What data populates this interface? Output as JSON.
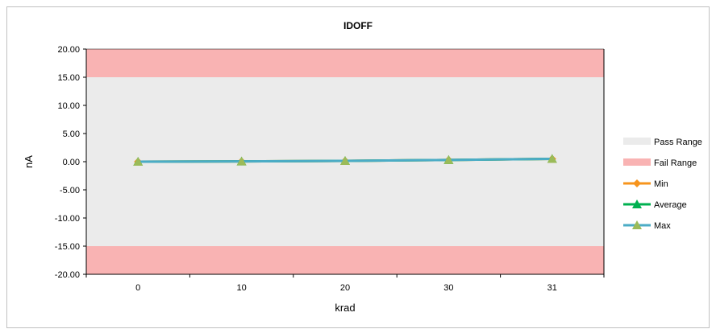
{
  "chart_data": {
    "type": "line",
    "title": "IDOFF",
    "xlabel": "krad",
    "ylabel": "nA",
    "categories": [
      "0",
      "10",
      "20",
      "30",
      "31"
    ],
    "ylim": [
      -20,
      20
    ],
    "y_tick_step": 5,
    "y_tick_decimals": 2,
    "pass_range": [
      -15,
      15
    ],
    "fail_ranges": [
      [
        15,
        20
      ],
      [
        -20,
        -15
      ]
    ],
    "series": [
      {
        "name": "Min",
        "values": [
          0.0,
          0.05,
          0.15,
          0.3,
          0.5
        ],
        "color": "#f7941d",
        "marker": "diamond"
      },
      {
        "name": "Average",
        "values": [
          0.0,
          0.05,
          0.15,
          0.3,
          0.5
        ],
        "color": "#00b050",
        "marker": "triangle"
      },
      {
        "name": "Max",
        "values": [
          0.0,
          0.05,
          0.15,
          0.3,
          0.5
        ],
        "color": "#4bacc6",
        "marker": "triangle",
        "marker_color": "#9bbb59"
      }
    ],
    "legend": {
      "position": "right",
      "items": [
        {
          "label": "Pass Range",
          "kind": "band",
          "color": "#ebebeb"
        },
        {
          "label": "Fail Range",
          "kind": "band",
          "color": "#f9b3b3"
        },
        {
          "label": "Min",
          "kind": "line",
          "color": "#f7941d",
          "marker": "diamond"
        },
        {
          "label": "Average",
          "kind": "line",
          "color": "#00b050",
          "marker": "triangle"
        },
        {
          "label": "Max",
          "kind": "line",
          "color": "#4bacc6",
          "marker": "triangle",
          "marker_color": "#9bbb59"
        }
      ]
    },
    "colors": {
      "pass": "#ebebeb",
      "fail": "#f9b3b3",
      "plot_border": "#000000"
    }
  }
}
